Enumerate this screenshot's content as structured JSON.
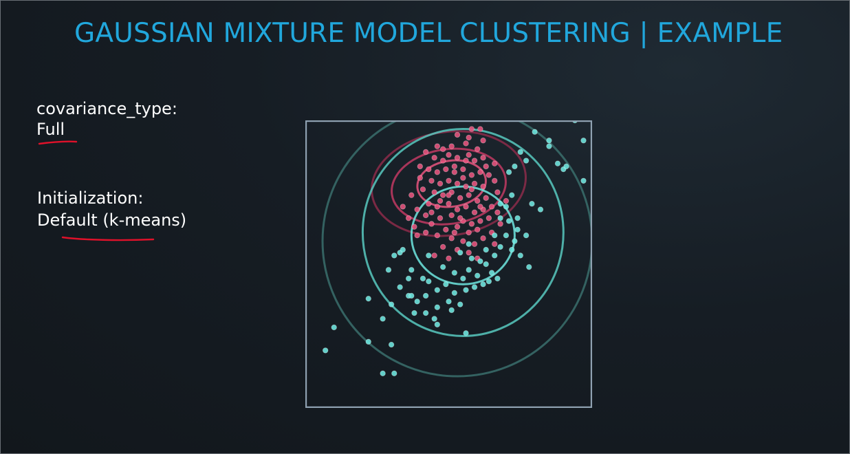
{
  "slide": {
    "title": "GAUSSIAN MIXTURE MODEL CLUSTERING | EXAMPLE",
    "params": [
      {
        "label": "covariance_type:",
        "value": "Full"
      },
      {
        "label": "Initialization:",
        "value": "Default (k-means)"
      }
    ]
  },
  "colors": {
    "title": "#21a7dc",
    "text": "#ffffff",
    "annotation": "#e0112a",
    "plot_border": "#8fa1b1",
    "cluster_pink": "#e8547e",
    "cluster_teal": "#6ee8e0"
  },
  "chart_data": {
    "type": "scatter",
    "title": "",
    "xlabel": "",
    "ylabel": "",
    "grid": false,
    "xlim": [
      0,
      1
    ],
    "ylim": [
      0,
      1
    ],
    "series": [
      {
        "color": "#e8547e",
        "points": [
          [
            0.58,
            0.97
          ],
          [
            0.61,
            0.97
          ],
          [
            0.53,
            0.95
          ],
          [
            0.57,
            0.94
          ],
          [
            0.46,
            0.91
          ],
          [
            0.51,
            0.91
          ],
          [
            0.56,
            0.92
          ],
          [
            0.6,
            0.9
          ],
          [
            0.42,
            0.89
          ],
          [
            0.45,
            0.87
          ],
          [
            0.48,
            0.86
          ],
          [
            0.5,
            0.88
          ],
          [
            0.53,
            0.87
          ],
          [
            0.57,
            0.88
          ],
          [
            0.59,
            0.86
          ],
          [
            0.62,
            0.87
          ],
          [
            0.43,
            0.83
          ],
          [
            0.46,
            0.82
          ],
          [
            0.49,
            0.83
          ],
          [
            0.52,
            0.82
          ],
          [
            0.55,
            0.83
          ],
          [
            0.58,
            0.81
          ],
          [
            0.61,
            0.82
          ],
          [
            0.64,
            0.81
          ],
          [
            0.4,
            0.8
          ],
          [
            0.44,
            0.79
          ],
          [
            0.47,
            0.78
          ],
          [
            0.5,
            0.79
          ],
          [
            0.53,
            0.78
          ],
          [
            0.56,
            0.77
          ],
          [
            0.59,
            0.78
          ],
          [
            0.62,
            0.77
          ],
          [
            0.66,
            0.79
          ],
          [
            0.41,
            0.76
          ],
          [
            0.45,
            0.75
          ],
          [
            0.48,
            0.74
          ],
          [
            0.51,
            0.75
          ],
          [
            0.54,
            0.73
          ],
          [
            0.57,
            0.74
          ],
          [
            0.6,
            0.72
          ],
          [
            0.63,
            0.73
          ],
          [
            0.67,
            0.75
          ],
          [
            0.37,
            0.74
          ],
          [
            0.43,
            0.71
          ],
          [
            0.46,
            0.7
          ],
          [
            0.5,
            0.71
          ],
          [
            0.53,
            0.69
          ],
          [
            0.56,
            0.7
          ],
          [
            0.59,
            0.68
          ],
          [
            0.62,
            0.69
          ],
          [
            0.65,
            0.7
          ],
          [
            0.39,
            0.69
          ],
          [
            0.42,
            0.67
          ],
          [
            0.47,
            0.66
          ],
          [
            0.51,
            0.67
          ],
          [
            0.55,
            0.65
          ],
          [
            0.58,
            0.64
          ],
          [
            0.61,
            0.65
          ],
          [
            0.64,
            0.66
          ],
          [
            0.36,
            0.66
          ],
          [
            0.44,
            0.64
          ],
          [
            0.49,
            0.62
          ],
          [
            0.53,
            0.63
          ],
          [
            0.57,
            0.61
          ],
          [
            0.6,
            0.62
          ],
          [
            0.68,
            0.64
          ],
          [
            0.42,
            0.61
          ],
          [
            0.46,
            0.6
          ],
          [
            0.51,
            0.59
          ],
          [
            0.55,
            0.58
          ],
          [
            0.59,
            0.57
          ],
          [
            0.62,
            0.59
          ],
          [
            0.39,
            0.6
          ],
          [
            0.48,
            0.56
          ],
          [
            0.53,
            0.55
          ],
          [
            0.57,
            0.54
          ],
          [
            0.65,
            0.61
          ],
          [
            0.7,
            0.72
          ],
          [
            0.34,
            0.7
          ],
          [
            0.67,
            0.68
          ],
          [
            0.54,
            0.66
          ],
          [
            0.5,
            0.74
          ],
          [
            0.58,
            0.76
          ],
          [
            0.47,
            0.72
          ],
          [
            0.61,
            0.7
          ],
          [
            0.44,
            0.68
          ],
          [
            0.55,
            0.8
          ],
          [
            0.52,
            0.84
          ],
          [
            0.63,
            0.84
          ],
          [
            0.4,
            0.84
          ],
          [
            0.6,
            0.52
          ],
          [
            0.5,
            0.52
          ],
          [
            0.45,
            0.53
          ],
          [
            0.66,
            0.57
          ],
          [
            0.38,
            0.63
          ],
          [
            0.52,
            0.61
          ],
          [
            0.56,
            0.86
          ],
          [
            0.48,
            0.9
          ],
          [
            0.62,
            0.93
          ],
          [
            0.66,
            0.85
          ]
        ]
      },
      {
        "color": "#6ee8e0",
        "points": [
          [
            0.8,
            0.96
          ],
          [
            0.85,
            0.93
          ],
          [
            0.85,
            0.91
          ],
          [
            0.75,
            0.89
          ],
          [
            0.77,
            0.86
          ],
          [
            0.73,
            0.84
          ],
          [
            0.71,
            0.82
          ],
          [
            0.88,
            0.85
          ],
          [
            0.9,
            0.83
          ],
          [
            0.91,
            0.84
          ],
          [
            0.97,
            0.93
          ],
          [
            0.97,
            0.79
          ],
          [
            0.94,
            1.0
          ],
          [
            0.82,
            0.69
          ],
          [
            0.72,
            0.74
          ],
          [
            0.7,
            0.7
          ],
          [
            0.68,
            0.66
          ],
          [
            0.71,
            0.65
          ],
          [
            0.74,
            0.62
          ],
          [
            0.7,
            0.6
          ],
          [
            0.73,
            0.58
          ],
          [
            0.68,
            0.56
          ],
          [
            0.72,
            0.55
          ],
          [
            0.75,
            0.53
          ],
          [
            0.66,
            0.53
          ],
          [
            0.63,
            0.5
          ],
          [
            0.65,
            0.47
          ],
          [
            0.6,
            0.46
          ],
          [
            0.57,
            0.48
          ],
          [
            0.55,
            0.45
          ],
          [
            0.52,
            0.47
          ],
          [
            0.49,
            0.43
          ],
          [
            0.46,
            0.41
          ],
          [
            0.43,
            0.44
          ],
          [
            0.52,
            0.4
          ],
          [
            0.56,
            0.41
          ],
          [
            0.59,
            0.42
          ],
          [
            0.62,
            0.43
          ],
          [
            0.64,
            0.44
          ],
          [
            0.67,
            0.45
          ],
          [
            0.54,
            0.36
          ],
          [
            0.5,
            0.37
          ],
          [
            0.46,
            0.35
          ],
          [
            0.45,
            0.31
          ],
          [
            0.42,
            0.33
          ],
          [
            0.39,
            0.37
          ],
          [
            0.36,
            0.39
          ],
          [
            0.33,
            0.42
          ],
          [
            0.29,
            0.48
          ],
          [
            0.31,
            0.53
          ],
          [
            0.33,
            0.54
          ],
          [
            0.34,
            0.55
          ],
          [
            0.36,
            0.45
          ],
          [
            0.38,
            0.33
          ],
          [
            0.3,
            0.36
          ],
          [
            0.27,
            0.31
          ],
          [
            0.41,
            0.45
          ],
          [
            0.56,
            0.26
          ],
          [
            0.51,
            0.34
          ],
          [
            0.46,
            0.29
          ],
          [
            0.42,
            0.39
          ],
          [
            0.61,
            0.51
          ],
          [
            0.58,
            0.52
          ],
          [
            0.78,
            0.49
          ],
          [
            0.77,
            0.6
          ],
          [
            0.66,
            0.6
          ],
          [
            0.3,
            0.22
          ],
          [
            0.22,
            0.38
          ],
          [
            0.1,
            0.28
          ],
          [
            0.07,
            0.2
          ],
          [
            0.22,
            0.23
          ],
          [
            0.27,
            0.12
          ],
          [
            0.31,
            0.12
          ],
          [
            0.37,
            0.39
          ],
          [
            0.63,
            0.55
          ],
          [
            0.57,
            0.57
          ],
          [
            0.68,
            0.71
          ],
          [
            0.74,
            0.66
          ],
          [
            0.79,
            0.71
          ],
          [
            0.43,
            0.53
          ],
          [
            0.37,
            0.48
          ],
          [
            0.48,
            0.49
          ],
          [
            0.54,
            0.54
          ]
        ]
      }
    ],
    "ellipses": [
      {
        "color": "#8c2b4a",
        "center": [
          0.5,
          0.78
        ],
        "radii": [
          0.27,
          0.18
        ],
        "rotation": -8
      },
      {
        "color": "#c23a63",
        "center": [
          0.5,
          0.77
        ],
        "radii": [
          0.2,
          0.13
        ],
        "rotation": -8
      },
      {
        "color": "#e8547e",
        "center": [
          0.51,
          0.78
        ],
        "radii": [
          0.12,
          0.08
        ],
        "rotation": -8
      },
      {
        "color": "#3a6e6c",
        "center": [
          0.53,
          0.58
        ],
        "radii": [
          0.47,
          0.47
        ],
        "rotation": 0
      },
      {
        "color": "#58c9bf",
        "center": [
          0.55,
          0.61
        ],
        "radii": [
          0.35,
          0.36
        ],
        "rotation": 0
      },
      {
        "color": "#6ee8e0",
        "center": [
          0.55,
          0.6
        ],
        "radii": [
          0.18,
          0.17
        ],
        "rotation": 0
      }
    ]
  }
}
